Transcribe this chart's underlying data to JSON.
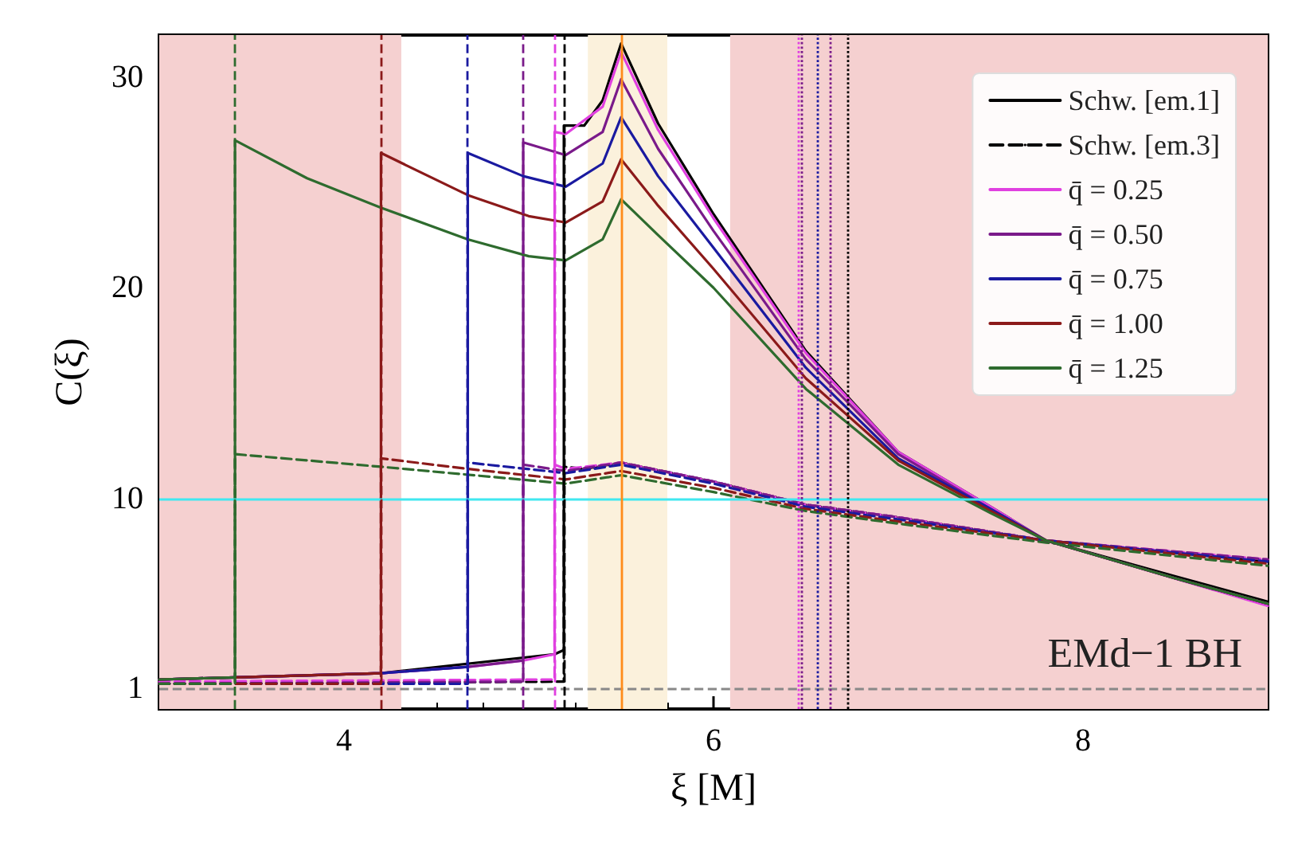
{
  "chart_data": {
    "type": "line",
    "xlabel": "ξ [M]",
    "ylabel": "C(ξ)",
    "xlim": [
      3,
      9
    ],
    "ylim": [
      0,
      32
    ],
    "xticks": [
      4,
      6,
      8
    ],
    "yticks": [
      1,
      10,
      20,
      30
    ],
    "grid": false,
    "legend": "top right",
    "marker": "none",
    "annotations": [
      "EMd−1 BH"
    ],
    "series": [
      {
        "name": "Schw. [em.1]",
        "color": "#000000",
        "line_style": "solid",
        "x": [
          3,
          3.41,
          4.2,
          5.14,
          5.19,
          5.19,
          5.3,
          5.4,
          5.5,
          5.7,
          6.0,
          6.5,
          7.0,
          7.5,
          7.8,
          8.5,
          9
        ],
        "values": [
          1.4,
          1.5,
          1.7,
          2.6,
          2.8,
          27.7,
          27.7,
          28.9,
          31.6,
          27.8,
          23.5,
          17.0,
          12.2,
          9.6,
          8.0,
          6.3,
          5.1
        ]
      },
      {
        "name": "Schw. [em.3]",
        "color": "#000000",
        "line_style": "dashed",
        "x": [
          3,
          5.19,
          5.19,
          5.3,
          5.5,
          6.0,
          6.5,
          7.0,
          7.8,
          9
        ],
        "values": [
          1.2,
          1.3,
          11.5,
          11.4,
          11.7,
          10.8,
          9.7,
          9.1,
          8.0,
          7.0
        ]
      },
      {
        "name": "q̄ = 0.25",
        "color": "#e040e0",
        "line_style": "solid",
        "x": [
          3,
          3.41,
          4.2,
          4.67,
          4.97,
          5.14,
          5.14,
          5.2,
          5.4,
          5.5,
          5.7,
          6.0,
          6.5,
          7.0,
          7.5,
          7.8,
          9
        ],
        "values": [
          1.4,
          1.5,
          1.7,
          2.0,
          2.3,
          2.6,
          27.4,
          27.3,
          28.6,
          31.2,
          27.5,
          23.3,
          16.9,
          12.2,
          9.6,
          8.0,
          4.9
        ]
      },
      {
        "name": "q̄ = 0.50",
        "color": "#7a1a8a",
        "line_style": "solid",
        "x": [
          3,
          3.41,
          4.2,
          4.67,
          4.97,
          4.97,
          5.2,
          5.4,
          5.5,
          5.7,
          6.0,
          6.5,
          7.0,
          7.5,
          7.8,
          8.5,
          9
        ],
        "values": [
          1.4,
          1.5,
          1.7,
          2.0,
          2.3,
          26.9,
          26.3,
          27.4,
          29.9,
          26.6,
          22.7,
          16.6,
          12.1,
          9.5,
          8.0,
          6.2,
          5.0
        ]
      },
      {
        "name": "q̄ = 0.75",
        "color": "#1a1aa0",
        "line_style": "solid",
        "x": [
          3,
          3.41,
          4.2,
          4.67,
          4.67,
          4.97,
          5.2,
          5.4,
          5.5,
          5.7,
          6.0,
          6.5,
          7.0,
          7.5,
          7.8,
          8.5,
          9
        ],
        "values": [
          1.4,
          1.5,
          1.7,
          2.0,
          26.4,
          25.3,
          24.8,
          25.9,
          28.1,
          25.3,
          21.9,
          16.2,
          11.9,
          9.5,
          8.0,
          6.2,
          5.0
        ]
      },
      {
        "name": "q̄ = 1.00",
        "color": "#8b1a1a",
        "line_style": "solid",
        "x": [
          3,
          3.41,
          4.2,
          4.2,
          4.67,
          5.0,
          5.2,
          5.4,
          5.5,
          5.7,
          6.0,
          6.5,
          7.0,
          7.5,
          7.8,
          8.5,
          9
        ],
        "values": [
          1.4,
          1.5,
          1.7,
          26.4,
          24.4,
          23.4,
          23.1,
          24.1,
          26.1,
          23.9,
          20.9,
          15.7,
          11.8,
          9.4,
          8.0,
          6.2,
          5.0
        ]
      },
      {
        "name": "q̄ = 1.25",
        "color": "#2e6b2e",
        "line_style": "solid",
        "x": [
          3,
          3.41,
          3.41,
          3.8,
          4.2,
          4.67,
          5.0,
          5.2,
          5.4,
          5.5,
          5.7,
          6.0,
          6.5,
          7.0,
          7.5,
          7.8,
          8.5,
          9
        ],
        "values": [
          1.4,
          1.5,
          27.0,
          25.2,
          23.8,
          22.3,
          21.5,
          21.3,
          22.3,
          24.2,
          22.5,
          20.0,
          15.2,
          11.6,
          9.3,
          8.0,
          6.2,
          5.0
        ]
      },
      {
        "color": "#e040e0",
        "line_style": "dashed",
        "x": [
          3,
          5.14,
          5.14,
          5.2,
          5.5,
          6.0,
          6.5,
          7.0,
          7.8,
          9
        ],
        "values": [
          1.3,
          1.4,
          11.6,
          11.4,
          11.7,
          10.8,
          9.7,
          9.1,
          8.0,
          7.1
        ]
      },
      {
        "color": "#7a1a8a",
        "line_style": "dashed",
        "x": [
          3,
          4.97,
          4.97,
          5.2,
          5.5,
          6.0,
          6.5,
          7.0,
          7.8,
          9
        ],
        "values": [
          1.2,
          1.3,
          11.6,
          11.3,
          11.7,
          10.8,
          9.7,
          9.1,
          8.0,
          7.1
        ]
      },
      {
        "color": "#1a1aa0",
        "line_style": "dashed",
        "x": [
          3,
          4.67,
          4.67,
          5.2,
          5.5,
          6.0,
          6.5,
          7.0,
          7.8,
          9
        ],
        "values": [
          1.2,
          1.2,
          11.7,
          11.2,
          11.6,
          10.7,
          9.6,
          9.0,
          8.0,
          7.0
        ]
      },
      {
        "color": "#8b1a1a",
        "line_style": "dashed",
        "x": [
          3,
          4.2,
          4.2,
          4.67,
          5.2,
          5.5,
          6.0,
          6.5,
          7.0,
          7.8,
          9
        ],
        "values": [
          1.2,
          1.2,
          11.9,
          11.4,
          10.9,
          11.3,
          10.5,
          9.5,
          8.9,
          8.0,
          6.9
        ]
      },
      {
        "color": "#2e6b2e",
        "line_style": "dashed",
        "x": [
          3,
          3.41,
          3.41,
          4.2,
          5.2,
          5.5,
          6.0,
          6.5,
          7.0,
          7.8,
          9
        ],
        "values": [
          1.2,
          1.2,
          12.1,
          11.5,
          10.7,
          11.1,
          10.3,
          9.4,
          8.8,
          7.9,
          6.8
        ]
      }
    ],
    "ref_lines": [
      {
        "axis": "y",
        "value": 10,
        "color": "#40e8f0",
        "line_style": "solid"
      },
      {
        "axis": "y",
        "value": 1,
        "color": "#888888",
        "line_style": "dashed"
      },
      {
        "axis": "x",
        "value": 3.41,
        "color": "#2e6b2e",
        "line_style": "dashed"
      },
      {
        "axis": "x",
        "value": 4.2,
        "color": "#8b1a1a",
        "line_style": "dashed"
      },
      {
        "axis": "x",
        "value": 4.67,
        "color": "#1a1aa0",
        "line_style": "dashed"
      },
      {
        "axis": "x",
        "value": 4.97,
        "color": "#7a1a8a",
        "line_style": "dashed"
      },
      {
        "axis": "x",
        "value": 5.14,
        "color": "#e040e0",
        "line_style": "dashed"
      },
      {
        "axis": "x",
        "value": 5.19,
        "color": "#000000",
        "line_style": "dashed"
      },
      {
        "axis": "x",
        "value": 5.5,
        "color": "#ff8c1a",
        "line_style": "solid"
      },
      {
        "axis": "x",
        "value": 6.46,
        "color": "#e040e0",
        "line_style": "dotted"
      },
      {
        "axis": "x",
        "value": 6.48,
        "color": "#7a1a8a",
        "line_style": "dotted"
      },
      {
        "axis": "x",
        "value": 6.56,
        "color": "#1a1aa0",
        "line_style": "dotted"
      },
      {
        "axis": "x",
        "value": 6.63,
        "color": "#7a1a8a",
        "line_style": "dotted"
      },
      {
        "axis": "x",
        "value": 6.73,
        "color": "#000000",
        "line_style": "dotted"
      }
    ],
    "bands": [
      {
        "axis": "x",
        "from": 3,
        "to": 4.31,
        "color": "#f5d0d0"
      },
      {
        "axis": "x",
        "from": 5.32,
        "to": 5.75,
        "color": "#fbf1dc"
      },
      {
        "axis": "x",
        "from": 6.09,
        "to": 9,
        "color": "#f5d0d0"
      }
    ]
  }
}
